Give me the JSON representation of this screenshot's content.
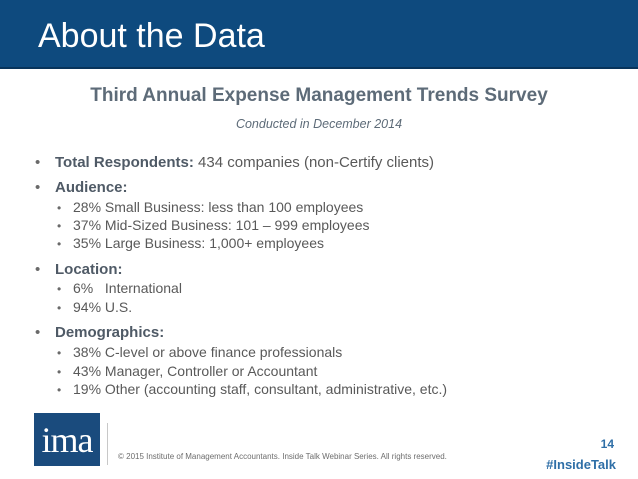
{
  "header": {
    "title": "About the Data"
  },
  "survey": {
    "title": "Third Annual Expense Management Trends Survey",
    "conducted": "Conducted in December 2014"
  },
  "sections": {
    "respondents": {
      "heading": "Total Respondents:",
      "text": " 434 companies (non-Certify clients)"
    },
    "audience": {
      "heading": "Audience:",
      "items": [
        "28% Small Business: less than 100 employees",
        "37% Mid-Sized Business: 101 – 999 employees",
        "35% Large Business: 1,000+ employees"
      ]
    },
    "location": {
      "heading": "Location:",
      "items": [
        "6%   International",
        "94% U.S."
      ]
    },
    "demographics": {
      "heading": "Demographics:",
      "items": [
        "38% C-level or above finance professionals",
        "43% Manager, Controller or Accountant",
        "19% Other (accounting staff, consultant, administrative, etc.)"
      ]
    }
  },
  "footer": {
    "logo_text": "ima",
    "copyright": "© 2015 Institute of Management Accountants. Inside Talk Webinar Series. All rights reserved.",
    "page_number": "14",
    "hashtag": "#InsideTalk"
  },
  "colors": {
    "header_bg": "#0e4a7e",
    "accent_blue": "#2f6fa7",
    "body_text": "#595959"
  }
}
